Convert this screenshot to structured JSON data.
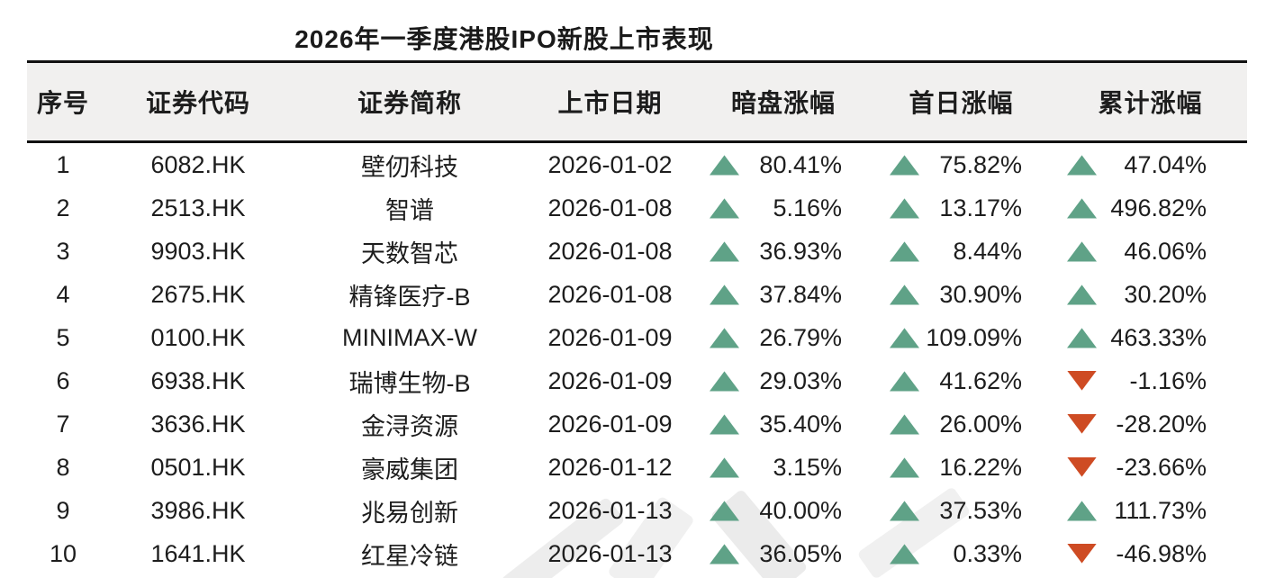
{
  "chart_data": {
    "type": "table",
    "title": "2026年一季度港股IPO新股上市表现",
    "columns": [
      "序号",
      "证券代码",
      "证券简称",
      "上市日期",
      "暗盘涨幅",
      "首日涨幅",
      "累计涨幅"
    ],
    "rows": [
      {
        "no": "1",
        "code": "6082.HK",
        "name": "壁仞科技",
        "date": "2026-01-02",
        "changes": [
          {
            "dir": "up",
            "value": "80.41%"
          },
          {
            "dir": "up",
            "value": "75.82%"
          },
          {
            "dir": "up",
            "value": "47.04%"
          }
        ]
      },
      {
        "no": "2",
        "code": "2513.HK",
        "name": "智谱",
        "date": "2026-01-08",
        "changes": [
          {
            "dir": "up",
            "value": "5.16%"
          },
          {
            "dir": "up",
            "value": "13.17%"
          },
          {
            "dir": "up",
            "value": "496.82%"
          }
        ]
      },
      {
        "no": "3",
        "code": "9903.HK",
        "name": "天数智芯",
        "date": "2026-01-08",
        "changes": [
          {
            "dir": "up",
            "value": "36.93%"
          },
          {
            "dir": "up",
            "value": "8.44%"
          },
          {
            "dir": "up",
            "value": "46.06%"
          }
        ]
      },
      {
        "no": "4",
        "code": "2675.HK",
        "name": "精锋医疗-B",
        "date": "2026-01-08",
        "changes": [
          {
            "dir": "up",
            "value": "37.84%"
          },
          {
            "dir": "up",
            "value": "30.90%"
          },
          {
            "dir": "up",
            "value": "30.20%"
          }
        ]
      },
      {
        "no": "5",
        "code": "0100.HK",
        "name": "MINIMAX-W",
        "date": "2026-01-09",
        "changes": [
          {
            "dir": "up",
            "value": "26.79%"
          },
          {
            "dir": "up",
            "value": "109.09%"
          },
          {
            "dir": "up",
            "value": "463.33%"
          }
        ]
      },
      {
        "no": "6",
        "code": "6938.HK",
        "name": "瑞博生物-B",
        "date": "2026-01-09",
        "changes": [
          {
            "dir": "up",
            "value": "29.03%"
          },
          {
            "dir": "up",
            "value": "41.62%"
          },
          {
            "dir": "down",
            "value": "-1.16%"
          }
        ]
      },
      {
        "no": "7",
        "code": "3636.HK",
        "name": "金浔资源",
        "date": "2026-01-09",
        "changes": [
          {
            "dir": "up",
            "value": "35.40%"
          },
          {
            "dir": "up",
            "value": "26.00%"
          },
          {
            "dir": "down",
            "value": "-28.20%"
          }
        ]
      },
      {
        "no": "8",
        "code": "0501.HK",
        "name": "豪威集团",
        "date": "2026-01-12",
        "changes": [
          {
            "dir": "up",
            "value": "3.15%"
          },
          {
            "dir": "up",
            "value": "16.22%"
          },
          {
            "dir": "down",
            "value": "-23.66%"
          }
        ]
      },
      {
        "no": "9",
        "code": "3986.HK",
        "name": "兆易创新",
        "date": "2026-01-13",
        "changes": [
          {
            "dir": "up",
            "value": "40.00%"
          },
          {
            "dir": "up",
            "value": "37.53%"
          },
          {
            "dir": "up",
            "value": "111.73%"
          }
        ]
      },
      {
        "no": "10",
        "code": "1641.HK",
        "name": "红星冷链",
        "date": "2026-01-13",
        "changes": [
          {
            "dir": "up",
            "value": "36.05%"
          },
          {
            "dir": "up",
            "value": "0.33%"
          },
          {
            "dir": "down",
            "value": "-46.98%"
          }
        ]
      }
    ],
    "legend_note": "green triangle = rise, red triangle = fall"
  },
  "icons": {
    "up": "triangle-up-icon",
    "down": "triangle-down-icon"
  },
  "colors": {
    "up_green": "#5FA287",
    "down_red": "#CE4B23",
    "header_bg": "#F1F0EF",
    "rule_black": "#111111",
    "text": "#1D1D1D"
  }
}
